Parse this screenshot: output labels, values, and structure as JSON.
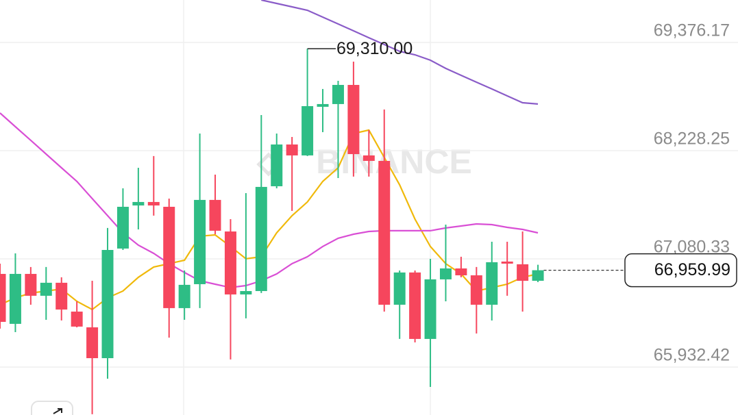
{
  "chart_data": {
    "type": "candlestick",
    "watermark": "BINANCE",
    "up_color": "#2ebd85",
    "down_color": "#f6465d",
    "grid": true,
    "ylim": [
      65424,
      69827
    ],
    "yticks": [
      {
        "value": 69376.17,
        "label": "69,376.17"
      },
      {
        "value": 68228.25,
        "label": "68,228.25"
      },
      {
        "value": 67080.33,
        "label": "67,080.33"
      },
      {
        "value": 65932.42,
        "label": "65,932.42"
      }
    ],
    "open": [
      66921,
      66391,
      66921,
      66689,
      66827,
      66521,
      66354,
      66027,
      67190,
      67647,
      67684,
      67633,
      66558,
      66812,
      67706,
      67371,
      66703,
      66739,
      67851,
      68294,
      68178,
      68694,
      68723,
      68926,
      68178,
      68120,
      66594,
      66936,
      66231,
      66863,
      66979,
      66906,
      66594,
      67052,
      67023,
      66848
    ],
    "high": [
      67030,
      67139,
      66994,
      66994,
      66885,
      66630,
      66848,
      67408,
      67829,
      68047,
      68171,
      67720,
      66957,
      68410,
      67974,
      67502,
      67778,
      68606,
      68410,
      68374,
      69310,
      68883,
      68970,
      69173,
      68447,
      68665,
      66957,
      66957,
      67081,
      67444,
      67103,
      66994,
      67262,
      67262,
      67371,
      67018
    ],
    "low": [
      66340,
      66303,
      66594,
      66434,
      66427,
      66354,
      65432,
      65809,
      67175,
      67393,
      67539,
      66245,
      66434,
      66558,
      67342,
      66013,
      66449,
      66718,
      67829,
      67589,
      68171,
      68425,
      67938,
      67953,
      67953,
      66521,
      66231,
      66194,
      65722,
      66630,
      66885,
      66289,
      66427,
      66689,
      66521,
      66834
    ],
    "close": [
      66412,
      66921,
      66689,
      66827,
      66543,
      66362,
      66027,
      67175,
      67633,
      67684,
      67647,
      66558,
      66805,
      67706,
      67379,
      66703,
      66739,
      67844,
      68294,
      68178,
      68701,
      68723,
      68926,
      68192,
      68120,
      66594,
      66936,
      66231,
      66863,
      66979,
      66906,
      66594,
      67045,
      67030,
      66848,
      66959.99
    ],
    "high_label": {
      "value": 69310,
      "label": "69,310.00"
    },
    "last_price": {
      "value": 66959.99,
      "label": "66,959.99"
    },
    "overlays": [
      {
        "color": "#f0b90b",
        "values": [
          66594,
          66667,
          66718,
          66739,
          66761,
          66630,
          66543,
          66667,
          66739,
          66885,
          66994,
          67030,
          67066,
          67321,
          67335,
          67212,
          67081,
          67103,
          67357,
          67539,
          67684,
          67902,
          68047,
          68410,
          68447,
          68156,
          67866,
          67502,
          67212,
          67030,
          66921,
          66739,
          66776,
          66812,
          66885,
          66921
        ]
      },
      {
        "color": "#d94fd5",
        "values": [
          68628,
          68483,
          68338,
          68192,
          68047,
          67902,
          67720,
          67539,
          67357,
          67226,
          67139,
          67030,
          66936,
          66848,
          66812,
          66776,
          66797,
          66848,
          66921,
          67030,
          67103,
          67212,
          67299,
          67342,
          67371,
          67379,
          67379,
          67379,
          67379,
          67408,
          67429,
          67451,
          67444,
          67415,
          67393,
          67357
        ]
      },
      {
        "color": "#8a5cc8",
        "values": [
          null,
          null,
          null,
          null,
          null,
          null,
          null,
          null,
          null,
          null,
          null,
          null,
          null,
          null,
          null,
          null,
          null,
          69827,
          69791,
          69754,
          69718,
          69645,
          69573,
          69500,
          69427,
          69355,
          69282,
          69246,
          69188,
          69101,
          69028,
          68955,
          68883,
          68810,
          68737,
          68723
        ]
      }
    ]
  }
}
